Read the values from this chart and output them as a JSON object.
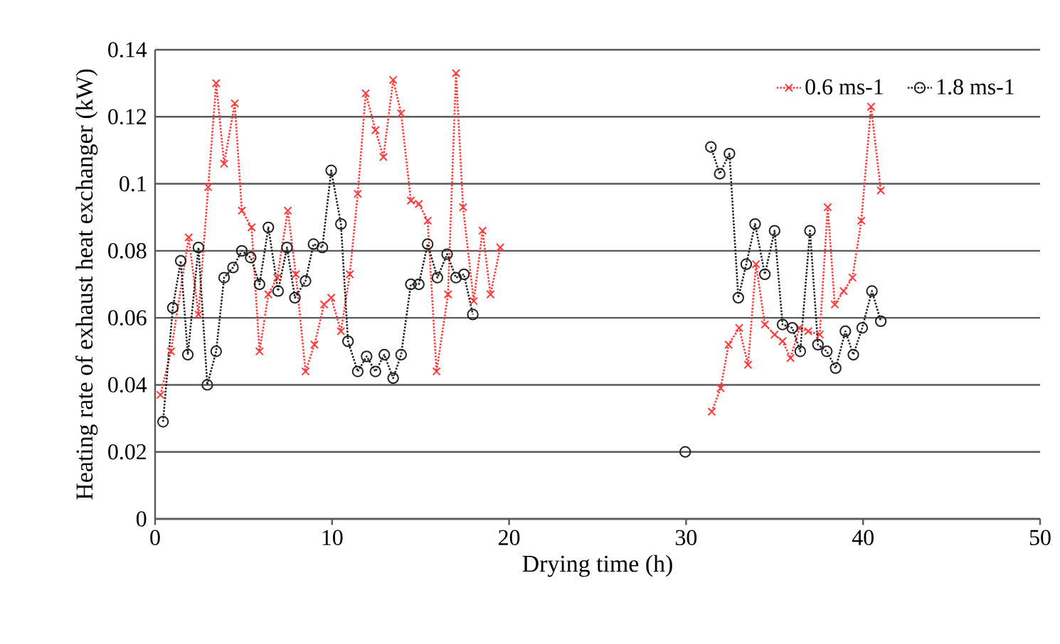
{
  "chart_data": {
    "type": "line",
    "xlabel": "Drying time (h)",
    "ylabel": "Heating rate of exhaust heat exchanger (kW)",
    "xlim": [
      0,
      50
    ],
    "xticks": [
      0,
      10,
      20,
      30,
      40,
      50
    ],
    "ylim": [
      0,
      0.14
    ],
    "yticks": [
      0,
      0.02,
      0.04,
      0.06,
      0.08,
      0.1,
      0.12,
      0.14
    ],
    "grid": "y",
    "legend": "top right",
    "line_style": "dotted",
    "series": [
      {
        "name": "0.6 ms-1",
        "color": "#ff3b3b",
        "marker": "cross",
        "x": [
          0.3,
          0.9,
          1.9,
          2.45,
          3.0,
          3.45,
          3.9,
          4.5,
          4.9,
          5.45,
          5.9,
          6.4,
          6.9,
          7.5,
          7.95,
          8.5,
          9.0,
          9.55,
          9.95,
          10.5,
          11.0,
          11.45,
          11.9,
          12.45,
          12.9,
          13.45,
          13.9,
          14.45,
          14.9,
          15.4,
          15.9,
          16.55,
          17.0,
          17.4,
          18.0,
          18.5,
          18.95,
          19.5
        ],
        "values": [
          0.037,
          0.05,
          0.084,
          0.061,
          0.099,
          0.13,
          0.106,
          0.124,
          0.092,
          0.087,
          0.05,
          0.067,
          0.072,
          0.092,
          0.073,
          0.044,
          0.052,
          0.064,
          0.066,
          0.056,
          0.073,
          0.097,
          0.127,
          0.116,
          0.108,
          0.131,
          0.121,
          0.095,
          0.094,
          0.089,
          0.044,
          0.067,
          0.133,
          0.093,
          0.065,
          0.086,
          0.067,
          0.081
        ]
      },
      {
        "name": "1.8 ms-1",
        "color": "#222222",
        "marker": "circle",
        "x": [
          0.45,
          1.0,
          1.45,
          1.85,
          2.45,
          2.95,
          3.45,
          3.9,
          4.4,
          4.9,
          5.4,
          5.9,
          6.4,
          6.95,
          7.45,
          7.9,
          8.5,
          8.95,
          9.45,
          9.95,
          10.5,
          10.9,
          11.45,
          11.95,
          12.45,
          12.95,
          13.45,
          13.9,
          14.45,
          14.9,
          15.4,
          15.95,
          16.5,
          17.0,
          17.45,
          17.95
        ],
        "values": [
          0.029,
          0.063,
          0.077,
          0.049,
          0.081,
          0.04,
          0.05,
          0.072,
          0.075,
          0.08,
          0.078,
          0.07,
          0.087,
          0.068,
          0.081,
          0.066,
          0.071,
          0.082,
          0.081,
          0.104,
          0.088,
          0.053,
          0.044,
          0.0485,
          0.044,
          0.049,
          0.042,
          0.049,
          0.07,
          0.07,
          0.082,
          0.072,
          0.079,
          0.072,
          0.073,
          0.061
        ]
      },
      {
        "color": "#ff3b3b",
        "marker": "cross",
        "x": [
          31.45,
          31.95,
          32.4,
          33.0,
          33.5,
          33.95,
          34.45,
          35.0,
          35.45,
          35.9,
          36.4,
          36.9,
          37.55,
          38.0,
          38.4,
          38.9,
          39.4,
          39.9,
          40.45,
          41.0
        ],
        "values": [
          0.032,
          0.039,
          0.052,
          0.057,
          0.046,
          0.076,
          0.058,
          0.055,
          0.053,
          0.048,
          0.057,
          0.056,
          0.055,
          0.093,
          0.064,
          0.068,
          0.072,
          0.089,
          0.123,
          0.098
        ]
      },
      {
        "color": "#222222",
        "marker": "circle",
        "x": [
          29.95
        ],
        "values": [
          0.02
        ]
      },
      {
        "color": "#222222",
        "marker": "circle",
        "x": [
          31.4,
          31.9,
          32.45,
          32.95,
          33.4,
          33.9,
          34.45,
          35.0,
          35.45,
          36.0,
          36.45,
          37.0,
          37.45,
          37.95,
          38.45,
          39.0,
          39.45,
          39.95,
          40.5,
          41.0
        ],
        "values": [
          0.111,
          0.103,
          0.109,
          0.066,
          0.076,
          0.088,
          0.073,
          0.086,
          0.058,
          0.057,
          0.05,
          0.086,
          0.052,
          0.05,
          0.045,
          0.056,
          0.049,
          0.057,
          0.068,
          0.059
        ]
      }
    ]
  }
}
